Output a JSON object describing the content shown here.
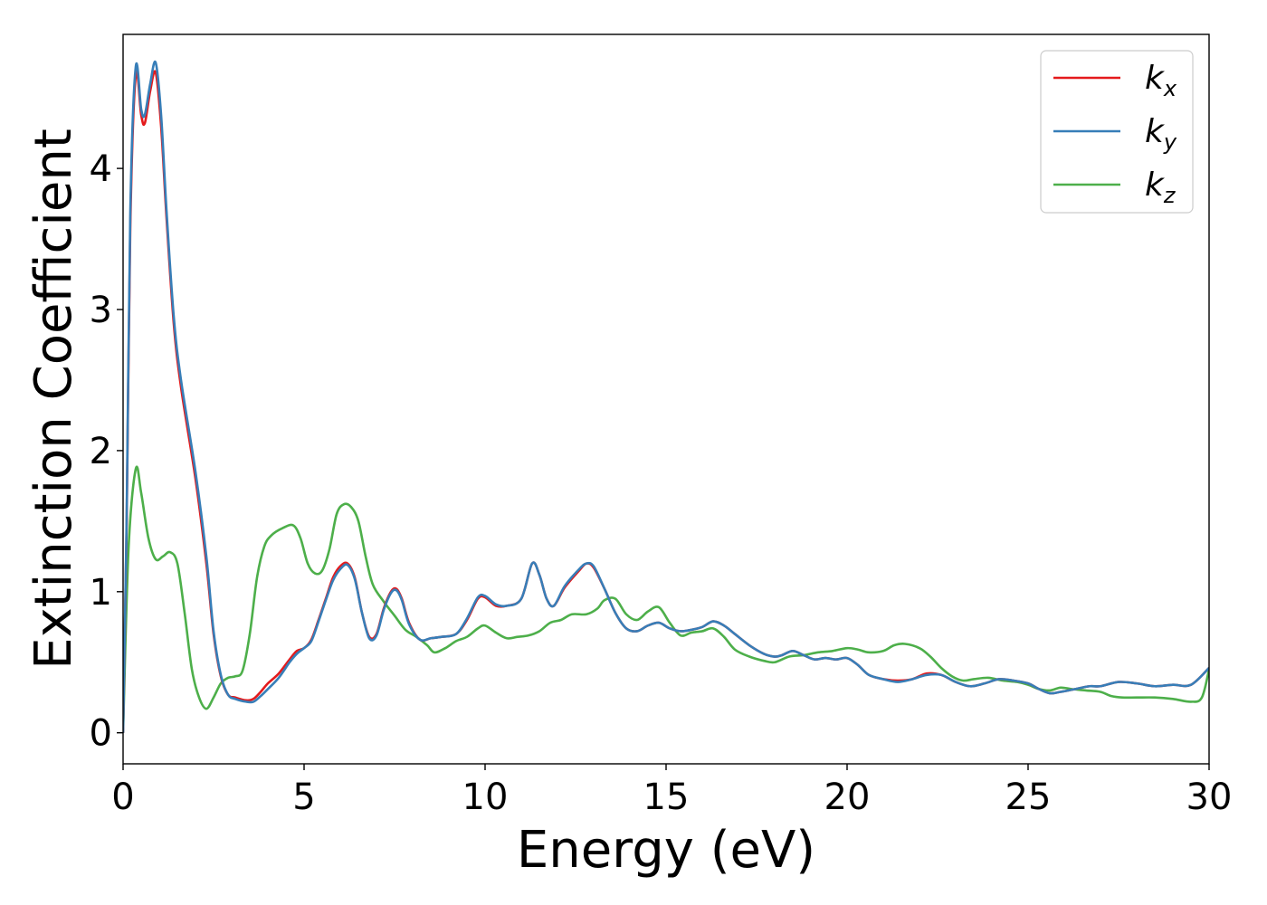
{
  "chart_data": {
    "type": "line",
    "xlabel": "Energy (eV)",
    "ylabel": "Extinction Coefficient",
    "xlim": [
      0,
      30
    ],
    "ylim": [
      -0.22,
      4.95
    ],
    "xticks": [
      0,
      5,
      10,
      15,
      20,
      25,
      30
    ],
    "xtick_labels": [
      "0",
      "5",
      "10",
      "15",
      "20",
      "25",
      "30"
    ],
    "yticks": [
      0,
      1,
      2,
      3,
      4
    ],
    "ytick_labels": [
      "0",
      "1",
      "2",
      "3",
      "4"
    ],
    "grid": false,
    "legend_position": "top-right",
    "series": [
      {
        "name": "kx",
        "name_base": "k",
        "name_sub": "x",
        "color": "#e41a1c",
        "x": [
          0,
          0.1,
          0.2,
          0.35,
          0.5,
          0.6,
          0.75,
          0.9,
          1.05,
          1.2,
          1.4,
          1.6,
          2.0,
          2.3,
          2.5,
          2.7,
          2.9,
          3.1,
          3.4,
          3.6,
          3.8,
          4.0,
          4.3,
          4.6,
          4.8,
          5.0,
          5.2,
          5.4,
          5.6,
          5.8,
          6.0,
          6.2,
          6.4,
          6.6,
          6.8,
          7.0,
          7.2,
          7.4,
          7.55,
          7.7,
          7.9,
          8.2,
          8.5,
          8.8,
          9.2,
          9.5,
          9.8,
          10.0,
          10.3,
          10.6,
          11.0,
          11.3,
          11.5,
          11.7,
          11.9,
          12.2,
          12.6,
          12.8,
          13.0,
          13.3,
          13.6,
          13.9,
          14.2,
          14.5,
          14.8,
          15.1,
          15.4,
          15.7,
          16.0,
          16.3,
          16.6,
          16.9,
          17.3,
          17.7,
          18.0,
          18.2,
          18.5,
          18.8,
          19.1,
          19.4,
          19.7,
          20.0,
          20.3,
          20.6,
          21.0,
          21.4,
          21.8,
          22.2,
          22.6,
          23.0,
          23.4,
          23.8,
          24.2,
          24.6,
          25.0,
          25.3,
          25.6,
          25.9,
          26.3,
          26.7,
          27.0,
          27.5,
          28.0,
          28.5,
          29.0,
          29.5,
          30.0
        ],
        "y": [
          0,
          1.5,
          3.6,
          4.66,
          4.38,
          4.32,
          4.55,
          4.68,
          4.3,
          3.65,
          2.9,
          2.45,
          1.8,
          1.2,
          0.7,
          0.4,
          0.27,
          0.25,
          0.23,
          0.24,
          0.29,
          0.35,
          0.42,
          0.52,
          0.58,
          0.6,
          0.66,
          0.8,
          0.95,
          1.1,
          1.18,
          1.2,
          1.1,
          0.85,
          0.68,
          0.7,
          0.88,
          1.0,
          1.02,
          0.95,
          0.78,
          0.66,
          0.67,
          0.68,
          0.7,
          0.8,
          0.95,
          0.96,
          0.9,
          0.9,
          0.95,
          1.2,
          1.12,
          0.95,
          0.9,
          1.03,
          1.15,
          1.2,
          1.17,
          1.02,
          0.85,
          0.74,
          0.72,
          0.76,
          0.78,
          0.74,
          0.72,
          0.73,
          0.75,
          0.79,
          0.76,
          0.7,
          0.62,
          0.56,
          0.54,
          0.55,
          0.58,
          0.55,
          0.52,
          0.53,
          0.52,
          0.53,
          0.48,
          0.41,
          0.38,
          0.37,
          0.38,
          0.42,
          0.41,
          0.36,
          0.33,
          0.35,
          0.38,
          0.37,
          0.35,
          0.31,
          0.28,
          0.29,
          0.31,
          0.33,
          0.33,
          0.36,
          0.35,
          0.33,
          0.34,
          0.34,
          0.46
        ]
      },
      {
        "name": "ky",
        "name_base": "k",
        "name_sub": "y",
        "color": "#377eb8",
        "x": [
          0,
          0.1,
          0.2,
          0.35,
          0.5,
          0.6,
          0.75,
          0.9,
          1.05,
          1.2,
          1.4,
          1.6,
          2.0,
          2.3,
          2.5,
          2.7,
          2.9,
          3.1,
          3.4,
          3.6,
          3.8,
          4.0,
          4.3,
          4.6,
          4.8,
          5.0,
          5.2,
          5.4,
          5.6,
          5.8,
          6.0,
          6.2,
          6.4,
          6.6,
          6.8,
          7.0,
          7.2,
          7.4,
          7.55,
          7.7,
          7.9,
          8.2,
          8.5,
          8.8,
          9.2,
          9.5,
          9.8,
          10.0,
          10.3,
          10.6,
          11.0,
          11.3,
          11.5,
          11.7,
          11.9,
          12.2,
          12.6,
          12.8,
          13.0,
          13.3,
          13.6,
          13.9,
          14.2,
          14.5,
          14.8,
          15.1,
          15.4,
          15.7,
          16.0,
          16.3,
          16.6,
          16.9,
          17.3,
          17.7,
          18.0,
          18.2,
          18.5,
          18.8,
          19.1,
          19.4,
          19.7,
          20.0,
          20.3,
          20.6,
          21.0,
          21.4,
          21.8,
          22.2,
          22.6,
          23.0,
          23.4,
          23.8,
          24.2,
          24.6,
          25.0,
          25.3,
          25.6,
          25.9,
          26.3,
          26.7,
          27.0,
          27.5,
          28.0,
          28.5,
          29.0,
          29.5,
          30.0
        ],
        "y": [
          0,
          1.55,
          3.7,
          4.72,
          4.42,
          4.38,
          4.6,
          4.75,
          4.38,
          3.7,
          2.95,
          2.5,
          1.85,
          1.25,
          0.72,
          0.41,
          0.27,
          0.24,
          0.22,
          0.22,
          0.26,
          0.31,
          0.39,
          0.5,
          0.56,
          0.6,
          0.65,
          0.79,
          0.94,
          1.08,
          1.16,
          1.19,
          1.09,
          0.85,
          0.67,
          0.69,
          0.87,
          0.99,
          1.01,
          0.94,
          0.77,
          0.66,
          0.67,
          0.68,
          0.7,
          0.81,
          0.96,
          0.97,
          0.91,
          0.9,
          0.95,
          1.2,
          1.12,
          0.95,
          0.9,
          1.04,
          1.16,
          1.2,
          1.18,
          1.02,
          0.85,
          0.74,
          0.72,
          0.76,
          0.78,
          0.74,
          0.72,
          0.73,
          0.75,
          0.79,
          0.76,
          0.7,
          0.62,
          0.56,
          0.54,
          0.55,
          0.58,
          0.55,
          0.52,
          0.53,
          0.52,
          0.53,
          0.48,
          0.41,
          0.38,
          0.36,
          0.38,
          0.41,
          0.41,
          0.36,
          0.33,
          0.35,
          0.38,
          0.37,
          0.35,
          0.31,
          0.28,
          0.29,
          0.31,
          0.33,
          0.33,
          0.36,
          0.35,
          0.33,
          0.34,
          0.34,
          0.46
        ]
      },
      {
        "name": "kz",
        "name_base": "k",
        "name_sub": "z",
        "color": "#4daf4a",
        "x": [
          0,
          0.15,
          0.35,
          0.5,
          0.7,
          0.9,
          1.1,
          1.3,
          1.5,
          1.7,
          1.9,
          2.1,
          2.3,
          2.5,
          2.7,
          2.9,
          3.1,
          3.3,
          3.5,
          3.7,
          3.9,
          4.1,
          4.4,
          4.7,
          4.9,
          5.1,
          5.3,
          5.5,
          5.7,
          5.9,
          6.1,
          6.3,
          6.5,
          6.7,
          6.9,
          7.2,
          7.5,
          7.8,
          8.1,
          8.4,
          8.6,
          8.9,
          9.2,
          9.5,
          9.8,
          10.0,
          10.3,
          10.6,
          10.9,
          11.2,
          11.5,
          11.8,
          12.1,
          12.4,
          12.8,
          13.1,
          13.3,
          13.6,
          13.9,
          14.2,
          14.5,
          14.8,
          15.1,
          15.4,
          15.7,
          16.0,
          16.3,
          16.6,
          16.9,
          17.3,
          17.7,
          18.0,
          18.4,
          18.8,
          19.2,
          19.6,
          20.0,
          20.3,
          20.6,
          21.0,
          21.3,
          21.6,
          22.0,
          22.3,
          22.6,
          22.9,
          23.2,
          23.5,
          23.9,
          24.3,
          24.7,
          25.0,
          25.3,
          25.6,
          25.9,
          26.2,
          26.6,
          27.0,
          27.3,
          27.6,
          28.0,
          28.5,
          29.0,
          29.5,
          29.8,
          30.0
        ],
        "y": [
          0,
          1.3,
          1.87,
          1.7,
          1.38,
          1.23,
          1.25,
          1.28,
          1.2,
          0.85,
          0.45,
          0.25,
          0.17,
          0.25,
          0.35,
          0.39,
          0.4,
          0.44,
          0.7,
          1.1,
          1.32,
          1.4,
          1.45,
          1.47,
          1.38,
          1.2,
          1.13,
          1.15,
          1.3,
          1.55,
          1.62,
          1.6,
          1.5,
          1.25,
          1.05,
          0.93,
          0.83,
          0.73,
          0.68,
          0.62,
          0.57,
          0.6,
          0.65,
          0.68,
          0.74,
          0.76,
          0.71,
          0.67,
          0.68,
          0.69,
          0.72,
          0.78,
          0.8,
          0.84,
          0.84,
          0.88,
          0.94,
          0.95,
          0.84,
          0.8,
          0.86,
          0.89,
          0.78,
          0.69,
          0.71,
          0.72,
          0.74,
          0.68,
          0.59,
          0.54,
          0.51,
          0.5,
          0.54,
          0.55,
          0.57,
          0.58,
          0.6,
          0.59,
          0.57,
          0.58,
          0.62,
          0.63,
          0.6,
          0.54,
          0.46,
          0.4,
          0.37,
          0.38,
          0.39,
          0.37,
          0.36,
          0.34,
          0.31,
          0.3,
          0.32,
          0.31,
          0.3,
          0.29,
          0.26,
          0.25,
          0.25,
          0.25,
          0.24,
          0.22,
          0.25,
          0.45
        ]
      }
    ]
  }
}
